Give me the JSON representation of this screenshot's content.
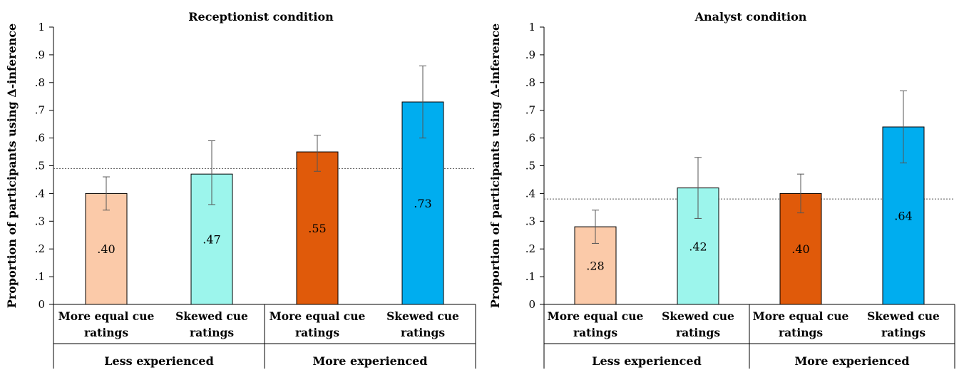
{
  "chart_data": [
    {
      "type": "bar",
      "title": "Receptionist condition",
      "ylabel": "Proportion of participants using Δ-inference",
      "ylim": [
        0,
        1
      ],
      "yticks": [
        "0",
        ".1",
        ".2",
        ".3",
        ".4",
        ".5",
        ".6",
        ".7",
        ".8",
        ".9",
        "1"
      ],
      "categories": [
        [
          "More equal cue",
          "ratings"
        ],
        [
          "Skewed cue",
          "ratings"
        ],
        [
          "More equal cue",
          "ratings"
        ],
        [
          "Skewed cue",
          "ratings"
        ]
      ],
      "groups": [
        "Less experienced",
        "More experienced"
      ],
      "values": [
        0.4,
        0.47,
        0.55,
        0.73
      ],
      "value_labels": [
        ".40",
        ".47",
        ".55",
        ".73"
      ],
      "error_low": [
        0.34,
        0.36,
        0.48,
        0.6
      ],
      "error_high": [
        0.46,
        0.59,
        0.61,
        0.86
      ],
      "reference_line": 0.49,
      "colors": [
        "#fbcaa9",
        "#9cf5ec",
        "#e05a0a",
        "#00adef"
      ]
    },
    {
      "type": "bar",
      "title": "Analyst condition",
      "ylabel": "Proportion of participants using Δ-inference",
      "ylim": [
        0,
        1
      ],
      "yticks": [
        "0",
        ".1",
        ".2",
        ".3",
        ".4",
        ".5",
        ".6",
        ".7",
        ".8",
        ".9",
        "1"
      ],
      "categories": [
        [
          "More equal cue",
          "ratings"
        ],
        [
          "Skewed cue",
          "ratings"
        ],
        [
          "More equal cue",
          "ratings"
        ],
        [
          "Skewed cue",
          "ratings"
        ]
      ],
      "groups": [
        "Less experienced",
        "More experienced"
      ],
      "values": [
        0.28,
        0.42,
        0.4,
        0.64
      ],
      "value_labels": [
        ".28",
        ".42",
        ".40",
        ".64"
      ],
      "error_low": [
        0.22,
        0.31,
        0.33,
        0.51
      ],
      "error_high": [
        0.34,
        0.53,
        0.47,
        0.77
      ],
      "reference_line": 0.38,
      "colors": [
        "#fbcaa9",
        "#9cf5ec",
        "#e05a0a",
        "#00adef"
      ]
    }
  ]
}
